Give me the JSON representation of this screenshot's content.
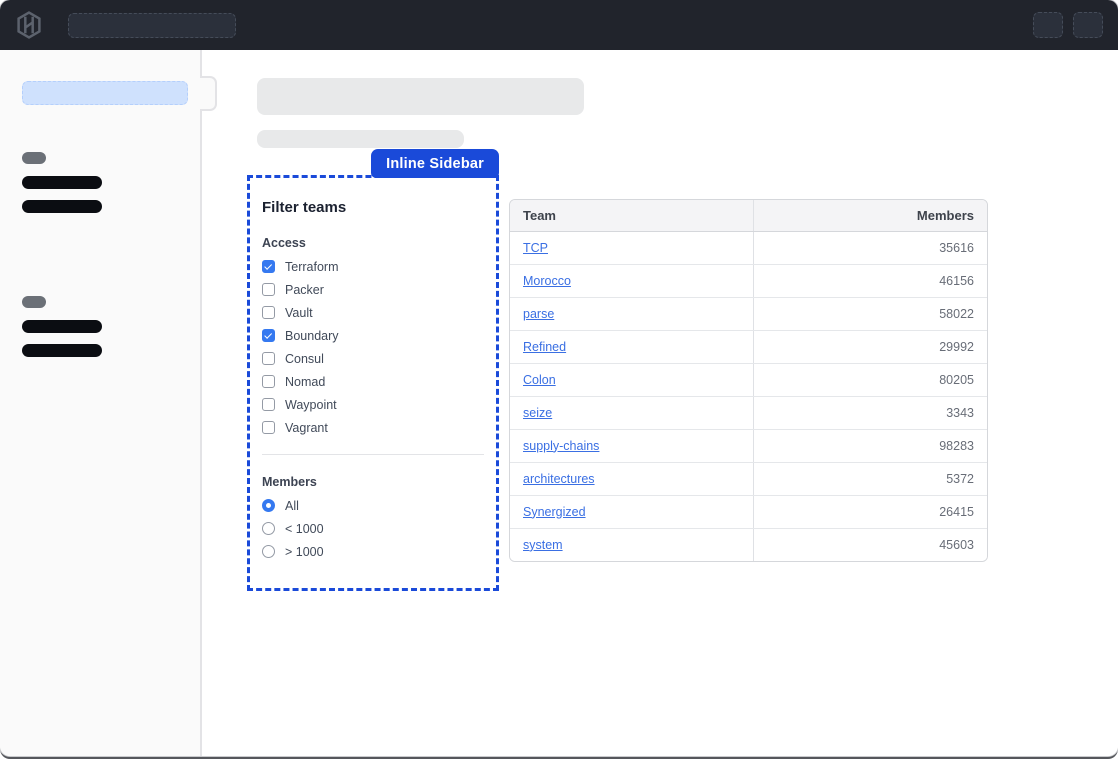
{
  "colors": {
    "accent_blue": "#1a4ad9",
    "control_blue": "#3579f0",
    "link_blue": "#3a6fe3",
    "navbar_bg": "#21242c"
  },
  "navbar": {
    "logo_icon": "hashicorp-logo"
  },
  "annotation": {
    "label": "Inline Sidebar"
  },
  "filter_panel": {
    "title": "Filter teams",
    "access": {
      "label": "Access",
      "options": [
        {
          "label": "Terraform",
          "checked": true
        },
        {
          "label": "Packer",
          "checked": false
        },
        {
          "label": "Vault",
          "checked": false
        },
        {
          "label": "Boundary",
          "checked": true
        },
        {
          "label": "Consul",
          "checked": false
        },
        {
          "label": "Nomad",
          "checked": false
        },
        {
          "label": "Waypoint",
          "checked": false
        },
        {
          "label": "Vagrant",
          "checked": false
        }
      ]
    },
    "members": {
      "label": "Members",
      "options": [
        {
          "label": "All",
          "selected": true
        },
        {
          "label": "< 1000",
          "selected": false
        },
        {
          "label": "> 1000",
          "selected": false
        }
      ]
    }
  },
  "table": {
    "columns": [
      "Team",
      "Members"
    ],
    "rows": [
      {
        "team": "TCP",
        "members": "35616"
      },
      {
        "team": "Morocco",
        "members": "46156"
      },
      {
        "team": "parse",
        "members": "58022"
      },
      {
        "team": "Refined",
        "members": "29992"
      },
      {
        "team": "Colon",
        "members": "80205"
      },
      {
        "team": "seize",
        "members": "3343"
      },
      {
        "team": "supply-chains",
        "members": "98283"
      },
      {
        "team": "architectures",
        "members": "5372"
      },
      {
        "team": "Synergized",
        "members": "26415"
      },
      {
        "team": "system",
        "members": "45603"
      }
    ]
  }
}
